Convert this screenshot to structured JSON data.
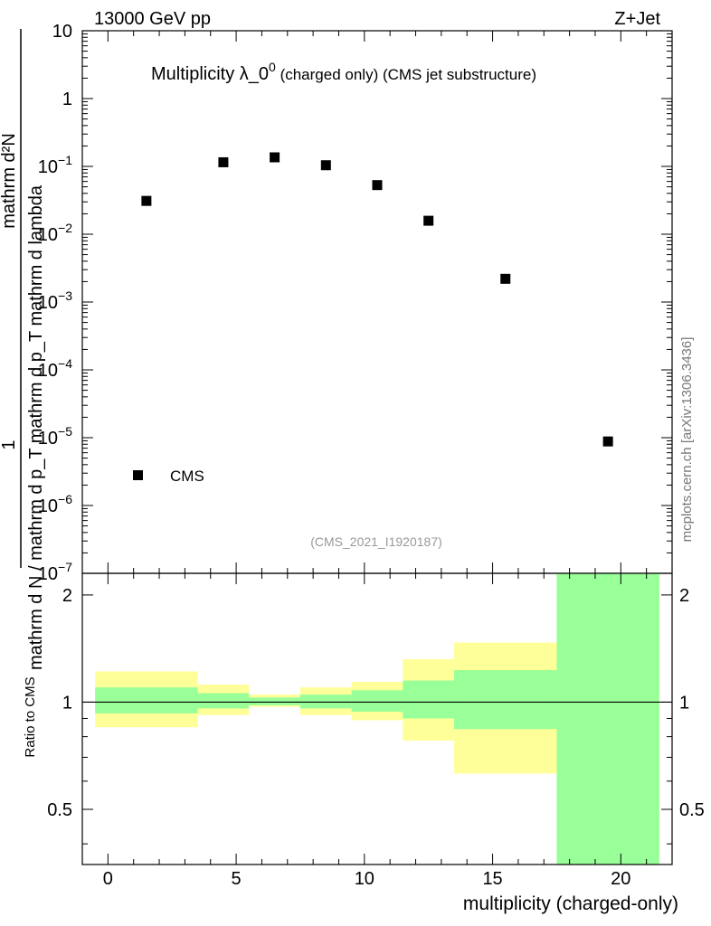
{
  "header": {
    "energy_label": "13000 GeV pp",
    "process_label": "Z+Jet",
    "title_main": "Multiplicity λ_0",
    "title_sup": "0",
    "title_suffix": " (charged only) (CMS jet substructure)",
    "watermark": "(CMS_2021_I1920187)",
    "side_credit": "mcplots.cern.ch [arXiv:1306.3436]"
  },
  "colors": {
    "marker": "#000000",
    "band_inner": "#99ff99",
    "band_outer": "#ffff99",
    "ref_line": "#000000"
  },
  "chart_data": [
    {
      "type": "scatter",
      "name": "main",
      "yscale": "log",
      "xlim": [
        -1,
        22
      ],
      "ylim": [
        1e-07,
        10
      ],
      "y_tick_labels": [
        "10^-7",
        "10^-6",
        "10^-5",
        "10^-4",
        "10^-3",
        "10^-2",
        "10^-1",
        "1",
        "10"
      ],
      "ylabel_parts": [
        "1",
        "mathrm d N / mathrm d p_T mathrm d p_T mathrm d lambda",
        "mathrm d²N"
      ],
      "legend": [
        {
          "label": "CMS",
          "marker": "square"
        }
      ],
      "series": [
        {
          "name": "CMS",
          "x": [
            1.5,
            4.5,
            6.5,
            8.5,
            10.5,
            12.5,
            15.5,
            19.5
          ],
          "y": [
            0.031,
            0.115,
            0.136,
            0.104,
            0.053,
            0.0158,
            0.0022,
            8.8e-06
          ]
        }
      ]
    },
    {
      "type": "area",
      "name": "ratio",
      "xlabel": "multiplicity (charged-only)",
      "ylabel": "Ratio to CMS",
      "xlim": [
        -1,
        22
      ],
      "ylim": [
        0.35,
        2.3
      ],
      "x_ticks": [
        "0",
        "5",
        "10",
        "15",
        "20"
      ],
      "y_ticks": [
        "0.5",
        "1",
        "2"
      ],
      "bins": [
        {
          "lo": -0.5,
          "hi": 3.5,
          "inner": [
            0.93,
            1.1
          ],
          "outer": [
            0.85,
            1.22
          ]
        },
        {
          "lo": 3.5,
          "hi": 5.5,
          "inner": [
            0.96,
            1.06
          ],
          "outer": [
            0.92,
            1.12
          ]
        },
        {
          "lo": 5.5,
          "hi": 7.5,
          "inner": [
            0.98,
            1.03
          ],
          "outer": [
            0.97,
            1.05
          ]
        },
        {
          "lo": 7.5,
          "hi": 9.5,
          "inner": [
            0.96,
            1.05
          ],
          "outer": [
            0.92,
            1.1
          ]
        },
        {
          "lo": 9.5,
          "hi": 11.5,
          "inner": [
            0.94,
            1.08
          ],
          "outer": [
            0.89,
            1.14
          ]
        },
        {
          "lo": 11.5,
          "hi": 13.5,
          "inner": [
            0.9,
            1.15
          ],
          "outer": [
            0.78,
            1.32
          ]
        },
        {
          "lo": 13.5,
          "hi": 17.5,
          "inner": [
            0.84,
            1.23
          ],
          "outer": [
            0.63,
            1.47
          ]
        },
        {
          "lo": 17.5,
          "hi": 21.5,
          "inner": [
            0.3,
            2.5
          ],
          "outer": [
            0.3,
            2.5
          ]
        }
      ]
    }
  ]
}
